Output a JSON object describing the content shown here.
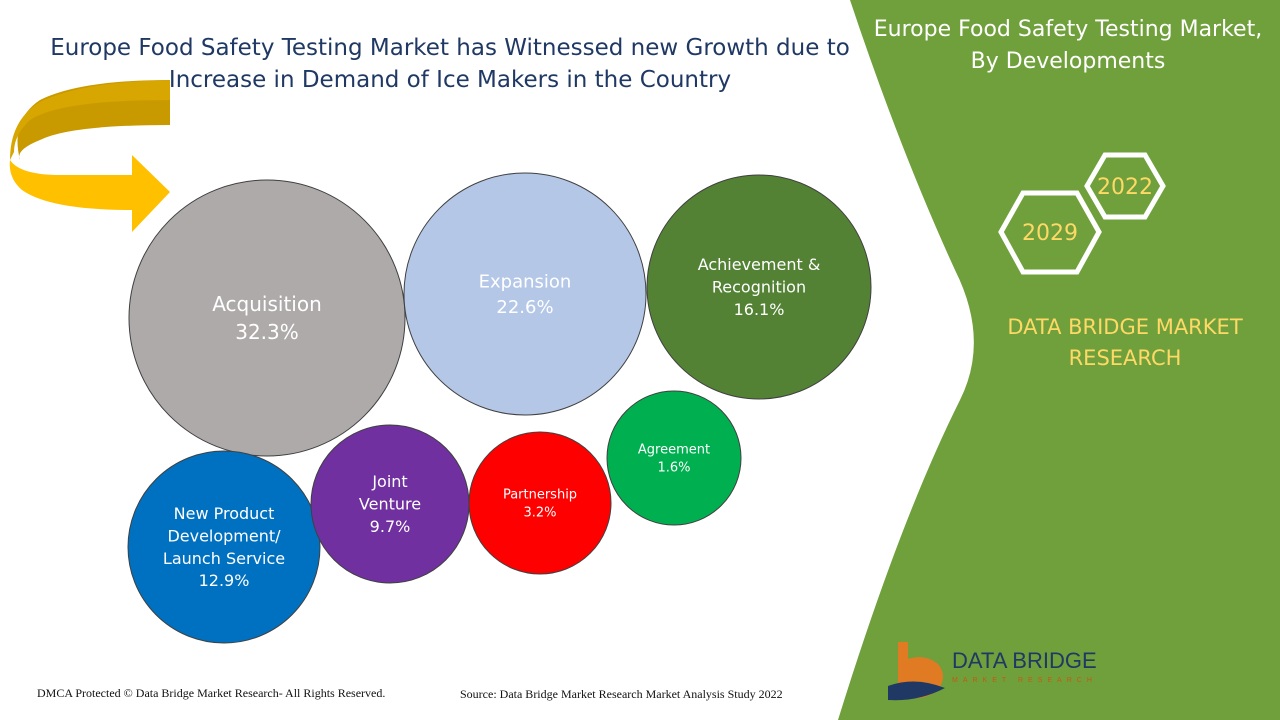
{
  "headline": "Europe Food Safety Testing Market has Witnessed new Growth due to Increase in Demand of Ice Makers in the Country",
  "side_title": "Europe Food Safety Testing Market, By Developments",
  "hex_years": [
    "2022",
    "2029"
  ],
  "brand_name": "DATA BRIDGE MARKET RESEARCH",
  "footer": {
    "copyright": "DMCA Protected © Data Bridge Market Research- All Rights Reserved.",
    "source": "Source: Data Bridge Market Research Market Analysis Study 2022"
  },
  "logo": {
    "name": "DATA BRIDGE",
    "subtitle": "MARKET RESEARCH"
  },
  "colors": {
    "green_panel": "#70a03c",
    "arrow": "#ffc000",
    "arrow_dark": "#c99a00"
  },
  "chart_data": {
    "type": "bubble",
    "title": "Europe Food Safety Testing Market, By Developments",
    "unit": "%",
    "items": [
      {
        "label": "Acquisition",
        "value": 32.3,
        "value_label": "32.3%",
        "color": "#aeaaaa",
        "text_color": "#ffffff"
      },
      {
        "label": "Expansion",
        "value": 22.6,
        "value_label": "22.6%",
        "color": "#b4c7e7",
        "text_color": "#ffffff"
      },
      {
        "label": "Achievement & Recognition",
        "value": 16.1,
        "value_label": "16.1%",
        "color": "#548235",
        "text_color": "#ffffff"
      },
      {
        "label": "New Product Development/ Launch Service",
        "value": 12.9,
        "value_label": "12.9%",
        "color": "#0070c0",
        "text_color": "#ffffff"
      },
      {
        "label": "Joint Venture",
        "value": 9.7,
        "value_label": "9.7%",
        "color": "#7030a0",
        "text_color": "#ffffff"
      },
      {
        "label": "Partnership",
        "value": 3.2,
        "value_label": "3.2%",
        "color": "#ff0000",
        "text_color": "#ffffff"
      },
      {
        "label": "Agreement",
        "value": 1.6,
        "value_label": "1.6%",
        "color": "#00b050",
        "text_color": "#ffffff"
      }
    ]
  }
}
